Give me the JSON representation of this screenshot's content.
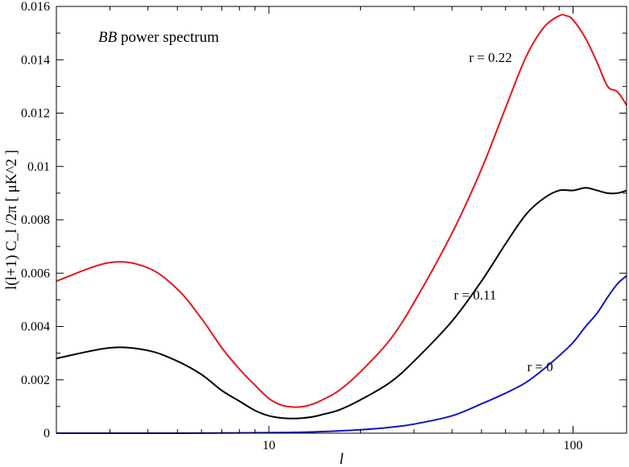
{
  "chart_data": {
    "type": "line",
    "title": "BB power spectrum",
    "xlabel": "l",
    "ylabel": "l(l+1) C_l /2π [ μK^2 ]",
    "xscale": "log",
    "xlim": [
      2,
      150
    ],
    "ylim": [
      0,
      0.016
    ],
    "grid": false,
    "legend": "none",
    "xticks": [
      10,
      100
    ],
    "xtick_labels": [
      "10",
      "100"
    ],
    "yticks": [
      0,
      0.002,
      0.004,
      0.006,
      0.008,
      0.01,
      0.012,
      0.014,
      0.016
    ],
    "ytick_labels": [
      "0",
      "0.002",
      "0.004",
      "0.006",
      "0.008",
      "0.01",
      "0.012",
      "0.014",
      "0.016"
    ],
    "series": [
      {
        "name": "r = 0.22",
        "color": "#e8141c",
        "x": [
          2,
          3,
          4,
          5,
          6,
          7,
          8,
          9,
          10,
          11,
          12,
          13,
          14,
          15,
          17,
          20,
          25,
          30,
          40,
          50,
          60,
          70,
          80,
          90,
          95,
          100,
          110,
          120,
          130,
          140,
          150
        ],
        "y": [
          0.0057,
          0.0064,
          0.0062,
          0.0054,
          0.0043,
          0.0032,
          0.0024,
          0.0018,
          0.0013,
          0.00105,
          0.00098,
          0.001,
          0.0011,
          0.00125,
          0.0016,
          0.0023,
          0.0035,
          0.0049,
          0.0075,
          0.0099,
          0.0122,
          0.0141,
          0.0152,
          0.01565,
          0.01565,
          0.0155,
          0.0148,
          0.0139,
          0.013,
          0.0128,
          0.0123
        ]
      },
      {
        "name": "r = 0.11",
        "color": "#000000",
        "x": [
          2,
          3,
          4,
          5,
          6,
          7,
          8,
          9,
          10,
          11,
          12,
          13,
          14,
          15,
          17,
          20,
          25,
          30,
          40,
          50,
          60,
          70,
          80,
          90,
          100,
          110,
          120,
          130,
          140,
          150
        ],
        "y": [
          0.0028,
          0.0032,
          0.0031,
          0.0027,
          0.0022,
          0.0016,
          0.0012,
          0.00085,
          0.00065,
          0.00057,
          0.00055,
          0.00057,
          0.00062,
          0.0007,
          0.00087,
          0.00125,
          0.0019,
          0.0027,
          0.0042,
          0.0057,
          0.0071,
          0.0082,
          0.0088,
          0.0091,
          0.0091,
          0.0092,
          0.0091,
          0.009,
          0.009,
          0.0091
        ]
      },
      {
        "name": "r = 0",
        "color": "#1414c8",
        "x": [
          2,
          5,
          8,
          10,
          12,
          15,
          20,
          25,
          30,
          40,
          50,
          60,
          70,
          80,
          90,
          100,
          110,
          120,
          130,
          140,
          150
        ],
        "y": [
          0.0,
          0.0,
          1e-05,
          2e-05,
          3e-05,
          6e-05,
          0.00013,
          0.00022,
          0.00034,
          0.00065,
          0.0011,
          0.0015,
          0.0019,
          0.0024,
          0.0029,
          0.0034,
          0.004,
          0.0045,
          0.0051,
          0.0056,
          0.0059
        ]
      }
    ],
    "annotations": [
      {
        "text": "r = 0.22",
        "series": 0,
        "x": 63,
        "y": 0.0141,
        "anchor": "end"
      },
      {
        "text": "r = 0.11",
        "series": 1,
        "x": 56,
        "y": 0.0052,
        "anchor": "end"
      },
      {
        "text": "r = 0",
        "series": 2,
        "x": 86,
        "y": 0.0025,
        "anchor": "end"
      }
    ]
  }
}
